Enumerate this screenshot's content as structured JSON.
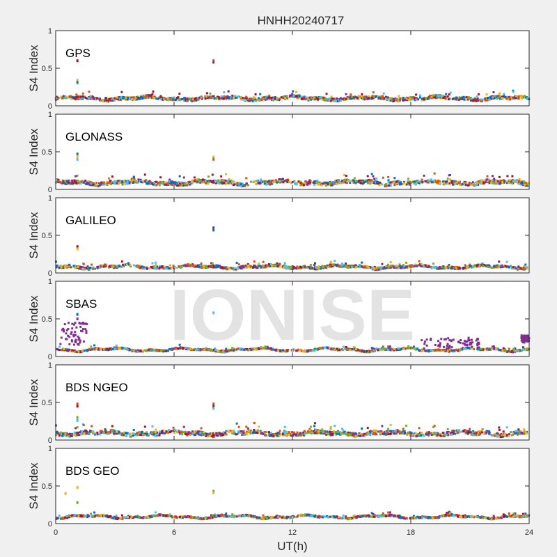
{
  "chart_data": {
    "type": "scatter",
    "title": "HNHH20240717",
    "xlabel": "UT(h)",
    "ylabel": "S4 Index",
    "xlim": [
      0,
      24
    ],
    "ylim": [
      0,
      1
    ],
    "xticks": [
      0,
      6,
      12,
      18,
      24
    ],
    "yticks": [
      0,
      0.5,
      1
    ],
    "watermark": "IONISE",
    "grid": false,
    "series_colors": [
      "#0072bd",
      "#d95319",
      "#edb120",
      "#7e2f8e",
      "#77ac30",
      "#4dbeee",
      "#a2142f"
    ],
    "panels": [
      {
        "label": "GPS",
        "baseline": 0.1,
        "noise": 0.04,
        "spikes": [
          {
            "x": 1.1,
            "values": [
              0.6,
              0.34,
              0.31
            ],
            "colors": [
              "#a2142f",
              "#edb120",
              "#0072bd"
            ]
          },
          {
            "x": 8.0,
            "values": [
              0.6,
              0.58
            ],
            "colors": [
              "#d95319",
              "#7e2f8e"
            ]
          }
        ]
      },
      {
        "label": "GLONASS",
        "baseline": 0.09,
        "noise": 0.05,
        "spikes": [
          {
            "x": 1.1,
            "values": [
              0.47,
              0.44,
              0.4
            ],
            "colors": [
              "#0072bd",
              "#edb120",
              "#4dbeee"
            ]
          },
          {
            "x": 8.0,
            "values": [
              0.43,
              0.4
            ],
            "colors": [
              "#edb120",
              "#d95319"
            ]
          }
        ]
      },
      {
        "label": "GALILEO",
        "baseline": 0.08,
        "noise": 0.03,
        "spikes": [
          {
            "x": 1.1,
            "values": [
              0.35,
              0.32
            ],
            "colors": [
              "#a2142f",
              "#edb120"
            ]
          },
          {
            "x": 8.0,
            "values": [
              0.6,
              0.57
            ],
            "colors": [
              "#7e2f8e",
              "#0072bd"
            ]
          }
        ]
      },
      {
        "label": "SBAS",
        "baseline": 0.09,
        "noise": 0.02,
        "spikes": [
          {
            "x": 1.1,
            "values": [
              0.56,
              0.5
            ],
            "colors": [
              "#0072bd",
              "#7e2f8e"
            ]
          },
          {
            "x": 8.0,
            "values": [
              0.58
            ],
            "colors": [
              "#4dbeee"
            ]
          }
        ],
        "bands": [
          {
            "x0": 0.2,
            "x1": 1.6,
            "y0": 0.15,
            "y1": 0.45,
            "color": "#7e2f8e"
          },
          {
            "x0": 18.5,
            "x1": 21.5,
            "y0": 0.12,
            "y1": 0.25,
            "color": "#7e2f8e"
          },
          {
            "x0": 23.6,
            "x1": 24,
            "y0": 0.18,
            "y1": 0.28,
            "color": "#7e2f8e"
          }
        ]
      },
      {
        "label": "BDS NGEO",
        "baseline": 0.09,
        "noise": 0.05,
        "spikes": [
          {
            "x": 1.1,
            "values": [
              0.48,
              0.45,
              0.3,
              0.26
            ],
            "colors": [
              "#d95319",
              "#a2142f",
              "#77ac30",
              "#4dbeee"
            ]
          },
          {
            "x": 8.0,
            "values": [
              0.48,
              0.45,
              0.42
            ],
            "colors": [
              "#d95319",
              "#a2142f",
              "#4dbeee"
            ]
          }
        ]
      },
      {
        "label": "BDS GEO",
        "baseline": 0.09,
        "noise": 0.02,
        "spikes": [
          {
            "x": 1.1,
            "values": [
              0.48,
              0.28
            ],
            "colors": [
              "#edb120",
              "#77ac30"
            ]
          },
          {
            "x": 0.5,
            "values": [
              0.4
            ],
            "colors": [
              "#edb120"
            ]
          },
          {
            "x": 8.0,
            "values": [
              0.43,
              0.41
            ],
            "colors": [
              "#77ac30",
              "#edb120"
            ]
          }
        ]
      }
    ]
  }
}
